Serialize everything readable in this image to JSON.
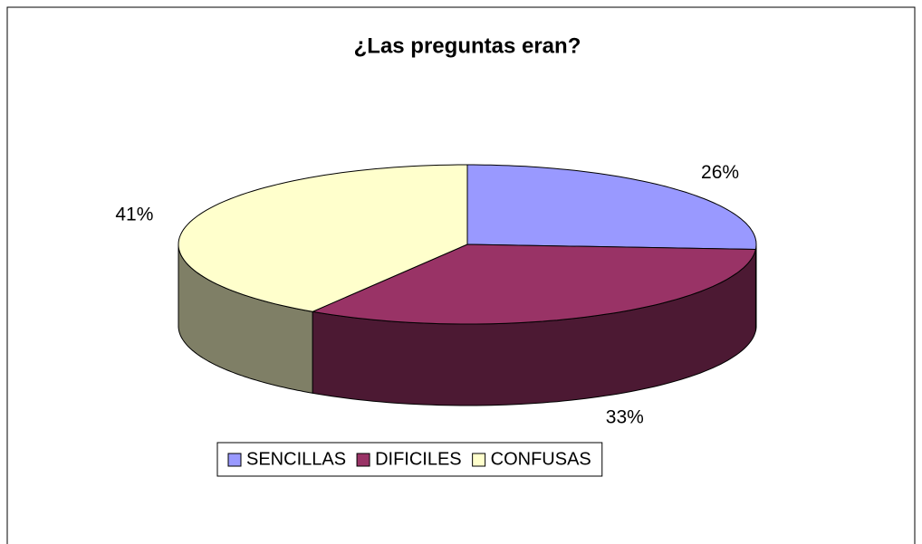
{
  "chart_data": {
    "type": "pie3d",
    "title": "¿Las preguntas eran?",
    "categories": [
      "SENCILLAS",
      "DIFICILES",
      "CONFUSAS"
    ],
    "values": [
      26,
      33,
      41
    ],
    "value_labels": [
      "26%",
      "33%",
      "41%"
    ],
    "colors": [
      "#9999ff",
      "#993366",
      "#ffffcc"
    ],
    "legend": "bottom"
  }
}
